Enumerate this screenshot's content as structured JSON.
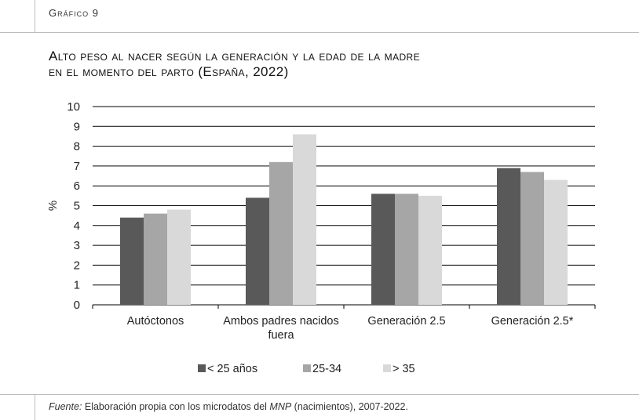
{
  "figure": {
    "label": "Gráfico 9",
    "title_line1": "Alto peso al nacer según la generación y la edad de la madre",
    "title_line2": "en el momento del parto (España, 2022)",
    "source_prefix": "Fuente:",
    "source_text_a": " Elaboración propia con los microdatos del ",
    "source_em": "MNP",
    "source_text_b": " (nacimientos), 2007-2022."
  },
  "colors": {
    "series_lt25": "#595959",
    "series_25_34": "#a6a6a6",
    "series_gt35": "#d9d9d9",
    "grid": "#000000"
  },
  "chart_data": {
    "type": "bar",
    "ylabel": "%",
    "ylim": [
      0,
      10
    ],
    "yticks": [
      "0",
      "1",
      "2",
      "3",
      "4",
      "5",
      "6",
      "7",
      "8",
      "9",
      "10"
    ],
    "grid": true,
    "legend_position": "bottom",
    "categories": [
      [
        "Autóctonos"
      ],
      [
        "Ambos padres nacidos",
        "fuera"
      ],
      [
        "Generación 2.5"
      ],
      [
        "Generación 2.5*"
      ]
    ],
    "series": [
      {
        "name": "<  25 años",
        "values": [
          4.4,
          5.4,
          5.6,
          6.9
        ]
      },
      {
        "name": "25-34",
        "values": [
          4.6,
          7.2,
          5.6,
          6.7
        ]
      },
      {
        "name": ">  35",
        "values": [
          4.8,
          8.6,
          5.5,
          6.3
        ]
      }
    ]
  }
}
